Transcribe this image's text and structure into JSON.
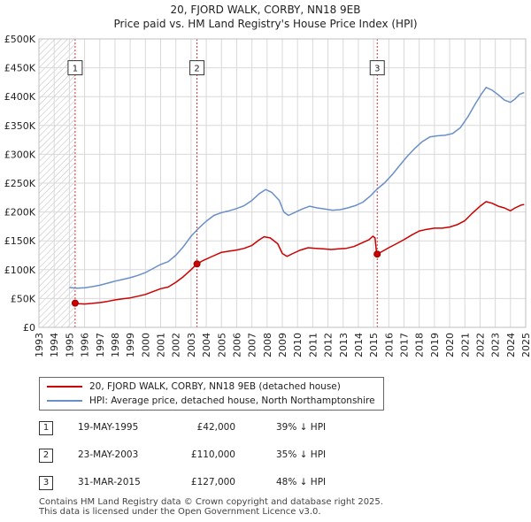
{
  "chart_data": {
    "type": "line",
    "title": "20, FJORD WALK, CORBY, NN18 9EB",
    "subtitle": "Price paid vs. HM Land Registry's House Price Index (HPI)",
    "xlabel": "",
    "ylabel": "",
    "xlim": [
      1993,
      2025
    ],
    "ylim": [
      0,
      500000
    ],
    "x_ticks": [
      "1993",
      "1994",
      "1995",
      "1996",
      "1997",
      "1998",
      "1999",
      "2000",
      "2001",
      "2002",
      "2003",
      "2004",
      "2005",
      "2006",
      "2007",
      "2008",
      "2009",
      "2010",
      "2011",
      "2012",
      "2013",
      "2014",
      "2015",
      "2016",
      "2017",
      "2018",
      "2019",
      "2020",
      "2021",
      "2022",
      "2023",
      "2024",
      "2025"
    ],
    "y_ticks": [
      {
        "value": 0,
        "label": "£0"
      },
      {
        "value": 50000,
        "label": "£50K"
      },
      {
        "value": 100000,
        "label": "£100K"
      },
      {
        "value": 150000,
        "label": "£150K"
      },
      {
        "value": 200000,
        "label": "£200K"
      },
      {
        "value": 250000,
        "label": "£250K"
      },
      {
        "value": 300000,
        "label": "£300K"
      },
      {
        "value": 350000,
        "label": "£350K"
      },
      {
        "value": 400000,
        "label": "£400K"
      },
      {
        "value": 450000,
        "label": "£450K"
      },
      {
        "value": 500000,
        "label": "£500K"
      }
    ],
    "grid": true,
    "hatched_region": [
      1993,
      1995.38
    ],
    "series": [
      {
        "name": "20, FJORD WALK, CORBY, NN18 9EB (detached house)",
        "color": "#cc0000",
        "points": [
          [
            1995.38,
            42000
          ],
          [
            1995.6,
            41000
          ],
          [
            1996,
            40500
          ],
          [
            1996.5,
            41500
          ],
          [
            1997,
            43000
          ],
          [
            1997.5,
            45000
          ],
          [
            1998,
            47500
          ],
          [
            1998.5,
            49500
          ],
          [
            1999,
            51000
          ],
          [
            1999.5,
            54000
          ],
          [
            2000,
            57000
          ],
          [
            2000.5,
            62000
          ],
          [
            2001,
            67000
          ],
          [
            2001.5,
            70000
          ],
          [
            2002,
            78000
          ],
          [
            2002.5,
            88000
          ],
          [
            2003,
            100000
          ],
          [
            2003.39,
            110000
          ],
          [
            2003.8,
            116000
          ],
          [
            2004.3,
            122000
          ],
          [
            2005,
            130000
          ],
          [
            2005.5,
            132000
          ],
          [
            2006,
            134000
          ],
          [
            2006.5,
            137000
          ],
          [
            2007,
            142000
          ],
          [
            2007.5,
            152000
          ],
          [
            2007.8,
            157000
          ],
          [
            2008.2,
            155000
          ],
          [
            2008.7,
            145000
          ],
          [
            2009,
            128000
          ],
          [
            2009.3,
            123000
          ],
          [
            2009.7,
            128000
          ],
          [
            2010.2,
            134000
          ],
          [
            2010.7,
            138000
          ],
          [
            2011.2,
            137000
          ],
          [
            2011.7,
            136000
          ],
          [
            2012.2,
            135000
          ],
          [
            2012.7,
            136000
          ],
          [
            2013.2,
            137000
          ],
          [
            2013.7,
            140000
          ],
          [
            2014.2,
            146000
          ],
          [
            2014.7,
            152000
          ],
          [
            2014.95,
            158000
          ],
          [
            2015.1,
            155000
          ],
          [
            2015.2,
            127000
          ],
          [
            2015.24,
            127000
          ],
          [
            2015.6,
            132000
          ],
          [
            2016,
            138000
          ],
          [
            2016.5,
            145000
          ],
          [
            2017,
            152000
          ],
          [
            2017.5,
            160000
          ],
          [
            2018,
            167000
          ],
          [
            2018.5,
            170000
          ],
          [
            2019,
            172000
          ],
          [
            2019.5,
            172000
          ],
          [
            2020,
            174000
          ],
          [
            2020.5,
            178000
          ],
          [
            2021,
            185000
          ],
          [
            2021.5,
            198000
          ],
          [
            2022,
            210000
          ],
          [
            2022.4,
            218000
          ],
          [
            2022.8,
            215000
          ],
          [
            2023.2,
            210000
          ],
          [
            2023.6,
            207000
          ],
          [
            2024,
            202000
          ],
          [
            2024.3,
            207000
          ],
          [
            2024.7,
            212000
          ],
          [
            2024.9,
            213000
          ]
        ]
      },
      {
        "name": "HPI: Average price, detached house, North Northamptonshire",
        "color": "#6a8fc8",
        "points": [
          [
            1995,
            69000
          ],
          [
            1995.5,
            68000
          ],
          [
            1996,
            68500
          ],
          [
            1996.5,
            70500
          ],
          [
            1997,
            73000
          ],
          [
            1997.5,
            76500
          ],
          [
            1998,
            80000
          ],
          [
            1998.5,
            83000
          ],
          [
            1999,
            86000
          ],
          [
            1999.5,
            90000
          ],
          [
            2000,
            95000
          ],
          [
            2000.5,
            102000
          ],
          [
            2001,
            109000
          ],
          [
            2001.5,
            114000
          ],
          [
            2002,
            125000
          ],
          [
            2002.5,
            140000
          ],
          [
            2003,
            158000
          ],
          [
            2003.5,
            172000
          ],
          [
            2004,
            184000
          ],
          [
            2004.5,
            194000
          ],
          [
            2005,
            199000
          ],
          [
            2005.5,
            202000
          ],
          [
            2006,
            206000
          ],
          [
            2006.5,
            211000
          ],
          [
            2007,
            220000
          ],
          [
            2007.5,
            232000
          ],
          [
            2007.9,
            239000
          ],
          [
            2008.3,
            234000
          ],
          [
            2008.8,
            220000
          ],
          [
            2009.1,
            200000
          ],
          [
            2009.4,
            194000
          ],
          [
            2009.8,
            199000
          ],
          [
            2010.3,
            205000
          ],
          [
            2010.8,
            210000
          ],
          [
            2011.3,
            207000
          ],
          [
            2011.8,
            205000
          ],
          [
            2012.3,
            203000
          ],
          [
            2012.8,
            204000
          ],
          [
            2013.3,
            207000
          ],
          [
            2013.8,
            211000
          ],
          [
            2014.3,
            217000
          ],
          [
            2014.8,
            228000
          ],
          [
            2015.24,
            240000
          ],
          [
            2015.7,
            250000
          ],
          [
            2016.2,
            264000
          ],
          [
            2016.7,
            280000
          ],
          [
            2017.2,
            296000
          ],
          [
            2017.7,
            310000
          ],
          [
            2018.2,
            322000
          ],
          [
            2018.7,
            330000
          ],
          [
            2019.2,
            332000
          ],
          [
            2019.7,
            333000
          ],
          [
            2020.2,
            336000
          ],
          [
            2020.7,
            346000
          ],
          [
            2021.2,
            365000
          ],
          [
            2021.7,
            388000
          ],
          [
            2022.1,
            405000
          ],
          [
            2022.4,
            416000
          ],
          [
            2022.8,
            411000
          ],
          [
            2023.2,
            403000
          ],
          [
            2023.6,
            394000
          ],
          [
            2024,
            390000
          ],
          [
            2024.3,
            396000
          ],
          [
            2024.6,
            404000
          ],
          [
            2024.9,
            407000
          ]
        ]
      }
    ],
    "markers": [
      {
        "label": "1",
        "year": 1995.38,
        "price": 42000
      },
      {
        "label": "2",
        "year": 2003.39,
        "price": 110000
      },
      {
        "label": "3",
        "year": 2015.24,
        "price": 127000
      }
    ],
    "annotations_y": 450000
  },
  "legend": {
    "property_label": "20, FJORD WALK, CORBY, NN18 9EB (detached house)",
    "hpi_label": "HPI: Average price, detached house, North Northamptonshire",
    "property_color": "#cc0000",
    "hpi_color": "#6a8fc8"
  },
  "transactions": [
    {
      "num": "1",
      "date": "19-MAY-1995",
      "price": "£42,000",
      "hpi": "39% ↓ HPI"
    },
    {
      "num": "2",
      "date": "23-MAY-2003",
      "price": "£110,000",
      "hpi": "35% ↓ HPI"
    },
    {
      "num": "3",
      "date": "31-MAR-2015",
      "price": "£127,000",
      "hpi": "48% ↓ HPI"
    }
  ],
  "footer": {
    "line1": "Contains HM Land Registry data © Crown copyright and database right 2025.",
    "line2": "This data is licensed under the Open Government Licence v3.0."
  }
}
